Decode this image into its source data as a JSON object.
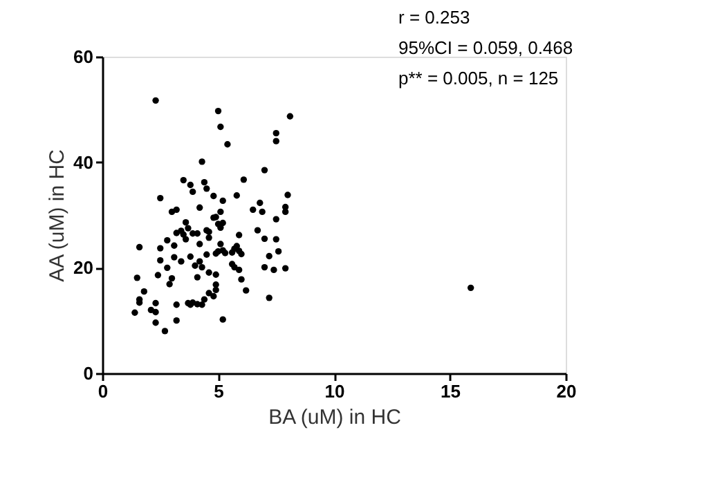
{
  "chart_data": {
    "type": "scatter",
    "xlabel": "BA (uM) in HC",
    "ylabel": "AA (uM) in HC",
    "annotations": [
      "r = 0.253",
      "95%CI = 0.059, 0.468",
      "p** = 0.005, n = 125"
    ],
    "xlim": [
      0,
      20
    ],
    "xticks": [
      0,
      5,
      10,
      15,
      20
    ],
    "ylim": [
      0,
      60
    ],
    "yticks": [
      0,
      20,
      40,
      60
    ],
    "grid": false,
    "legend": false,
    "marker": "circle",
    "series": [
      {
        "color": "#000000",
        "x": [
          2.3,
          5.0,
          5.1,
          5.4,
          8.1,
          7.5,
          7.5,
          7.0,
          4.3,
          2.5,
          3.5,
          3.8,
          3.9,
          4.4,
          4.5,
          4.8,
          5.2,
          5.8,
          6.1,
          8.0,
          7.9,
          7.9,
          6.8,
          6.5,
          6.9,
          7.5,
          4.8,
          4.9,
          5.1,
          4.2,
          3.0,
          3.2,
          1.6,
          2.5,
          2.5,
          2.4,
          1.5,
          1.8,
          1.6,
          1.6,
          1.4,
          2.1,
          2.3,
          2.3,
          2.3,
          2.7,
          3.2,
          3.2,
          2.8,
          3.1,
          2.8,
          3.1,
          3.0,
          2.9,
          3.2,
          3.4,
          3.6,
          3.7,
          3.5,
          3.9,
          4.1,
          3.8,
          4.0,
          4.2,
          4.3,
          4.1,
          3.7,
          3.8,
          3.9,
          4.1,
          4.3,
          4.5,
          4.2,
          4.6,
          4.6,
          4.5,
          4.9,
          5.0,
          5.1,
          5.0,
          4.6,
          4.9,
          4.9,
          4.9,
          4.6,
          4.8,
          5.2,
          5.1,
          5.2,
          5.3,
          5.7,
          5.8,
          5.9,
          5.9,
          6.0,
          5.6,
          5.7,
          5.9,
          6.0,
          6.2,
          6.7,
          7.0,
          7.2,
          7.0,
          7.2,
          7.5,
          7.6,
          7.4,
          7.9,
          15.9,
          5.2,
          3.6,
          3.4,
          5.6,
          4.4
        ],
        "values": [
          51.7,
          49.7,
          46.7,
          43.4,
          48.7,
          45.5,
          44.0,
          38.5,
          40.1,
          33.2,
          36.6,
          35.7,
          34.4,
          36.2,
          35.0,
          33.6,
          32.7,
          33.7,
          36.7,
          33.8,
          31.5,
          30.6,
          32.3,
          31.0,
          30.6,
          29.2,
          29.5,
          29.6,
          30.6,
          31.4,
          30.6,
          31.0,
          23.9,
          23.7,
          21.4,
          18.6,
          18.1,
          15.5,
          14.0,
          13.4,
          11.5,
          12.0,
          13.3,
          11.6,
          9.6,
          8.0,
          10.0,
          13.0,
          25.2,
          24.2,
          20.0,
          22.0,
          18.0,
          16.9,
          26.6,
          27.0,
          28.6,
          27.5,
          26.3,
          26.5,
          26.5,
          22.1,
          20.4,
          21.2,
          20.1,
          18.2,
          13.3,
          13.0,
          13.4,
          13.1,
          13.0,
          22.5,
          24.5,
          26.8,
          25.7,
          27.1,
          22.7,
          23.1,
          27.6,
          28.3,
          19.1,
          18.7,
          16.8,
          15.8,
          15.2,
          14.6,
          10.2,
          24.5,
          23.3,
          22.8,
          23.6,
          24.1,
          26.2,
          23.2,
          22.6,
          20.7,
          20.1,
          19.6,
          17.8,
          15.7,
          27.1,
          25.5,
          22.2,
          20.1,
          14.3,
          25.4,
          23.1,
          19.6,
          19.9,
          16.2,
          28.5,
          25.4,
          21.2,
          22.9,
          14.0
        ]
      }
    ]
  }
}
